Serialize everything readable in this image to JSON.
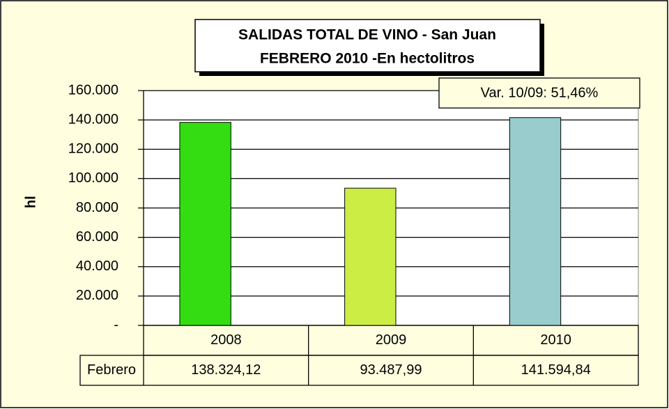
{
  "chart_data": {
    "type": "bar",
    "title": "SALIDAS TOTAL DE VINO - San Juan",
    "subtitle": "FEBRERO  2010 -En hectolitros",
    "annotation": "Var. 10/09:  51,46%",
    "y_label": "hl",
    "categories": [
      "2008",
      "2009",
      "2010"
    ],
    "series": [
      {
        "name": "Febrero",
        "colors": [
          "#33dd11",
          "#ccee44",
          "#99cccc"
        ],
        "values": [
          138324.12,
          93487.99,
          141594.84
        ],
        "value_labels": [
          "138.324,12",
          "93.487,99",
          "141.594,84"
        ]
      }
    ],
    "ylim": [
      0,
      160000
    ],
    "yticks": [
      {
        "value": 0,
        "label": "-"
      },
      {
        "value": 20000,
        "label": "20.000"
      },
      {
        "value": 40000,
        "label": "40.000"
      },
      {
        "value": 60000,
        "label": "60.000"
      },
      {
        "value": 80000,
        "label": "80.000"
      },
      {
        "value": 100000,
        "label": "100.000"
      },
      {
        "value": 120000,
        "label": "120.000"
      },
      {
        "value": 140000,
        "label": "140.000"
      },
      {
        "value": 160000,
        "label": "160.000"
      }
    ],
    "grid": true
  }
}
